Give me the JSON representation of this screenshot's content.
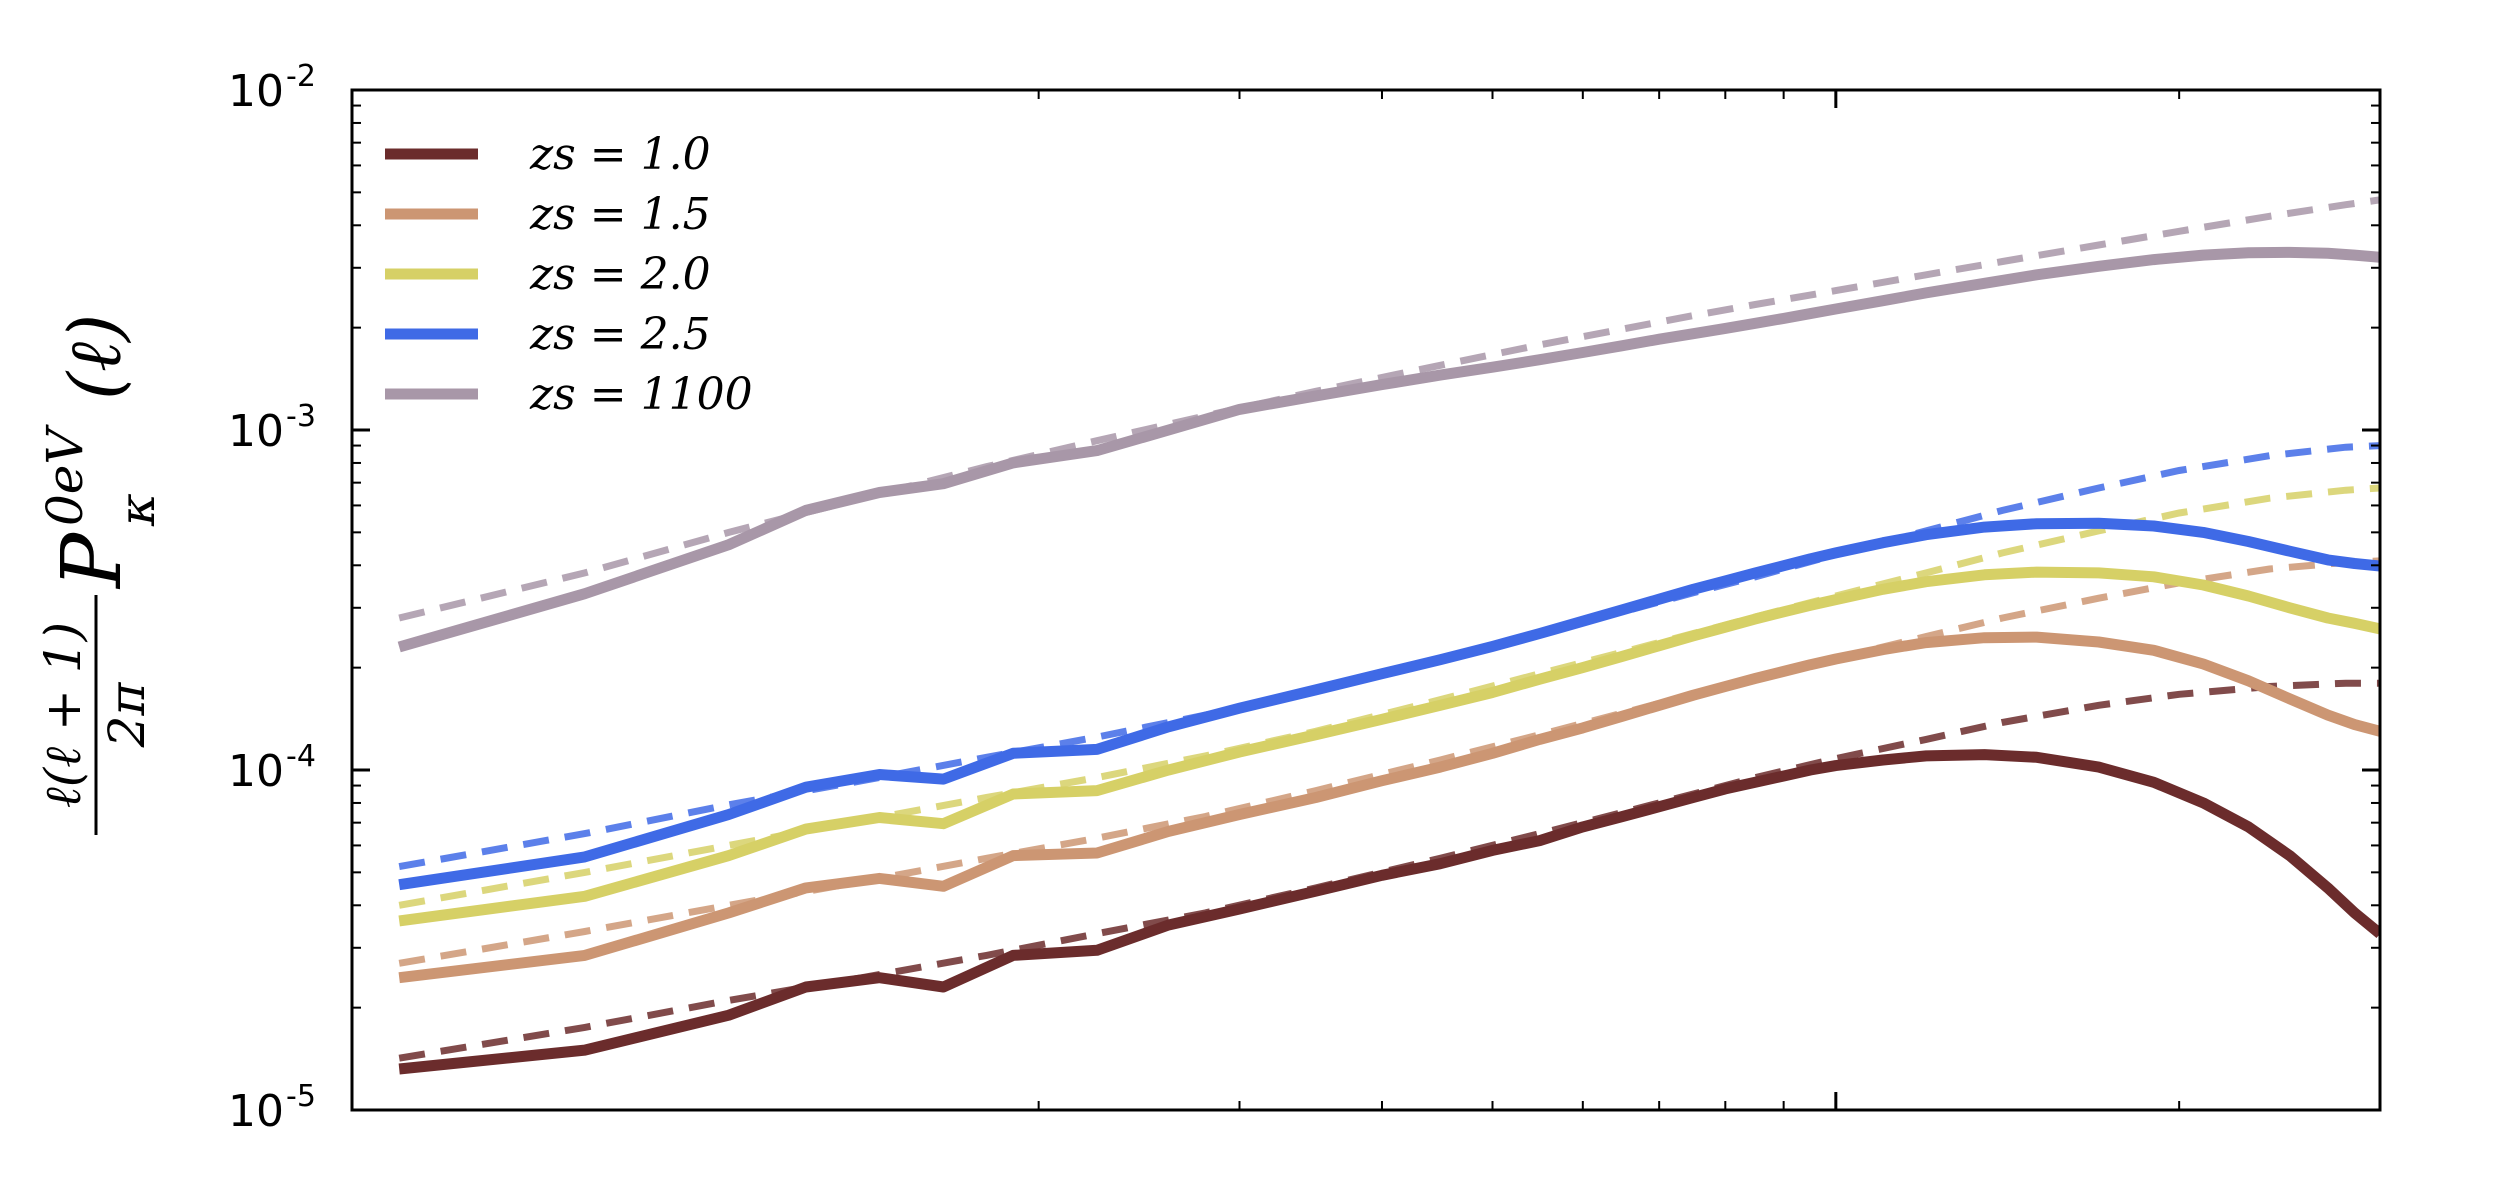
{
  "chart_data": {
    "type": "line",
    "xscale": "log",
    "yscale": "log",
    "xlim": [
      50,
      3000
    ],
    "ylim": [
      1e-05,
      0.01
    ],
    "grid": false,
    "legend_placement": "top-left",
    "ylabel": {
      "left_prefix": "ℓ(ℓ + 1)",
      "left_denominator": "2π",
      "main": "P",
      "superscript": "0eV",
      "subscript": "κ",
      "argument": "(ℓ)"
    },
    "y_ticks": [
      {
        "value": 1e-05,
        "base": "10",
        "exponent": "-5"
      },
      {
        "value": 0.0001,
        "base": "10",
        "exponent": "-4"
      },
      {
        "value": 0.001,
        "base": "10",
        "exponent": "-3"
      },
      {
        "value": 0.01,
        "base": "10",
        "exponent": "-2"
      }
    ],
    "x_major_ticks": [
      1000
    ],
    "x_minor_ticks": [
      200,
      300,
      400,
      500,
      600,
      700,
      800,
      900,
      2000,
      3000
    ],
    "series": [
      {
        "name": "z_s = 1.0",
        "legend_label": "zs = 1.0",
        "color": "#6b2c2c",
        "x": [
          55,
          80,
          107,
          125,
          145,
          165,
          190,
          225,
          260,
          300,
          350,
          400,
          450,
          500,
          550,
          600,
          650,
          700,
          750,
          800,
          850,
          900,
          950,
          1000,
          1100,
          1200,
          1350,
          1500,
          1700,
          1900,
          2100,
          2300,
          2500,
          2700,
          2850,
          3000
        ],
        "values": [
          1.32e-05,
          1.5e-05,
          1.9e-05,
          2.3e-05,
          2.45e-05,
          2.3e-05,
          2.85e-05,
          2.95e-05,
          3.5e-05,
          3.9e-05,
          4.4e-05,
          4.9e-05,
          5.3e-05,
          5.8e-05,
          6.2e-05,
          6.8e-05,
          7.3e-05,
          7.8e-05,
          8.3e-05,
          8.8e-05,
          9.2e-05,
          9.6e-05,
          0.0001,
          0.000103,
          0.000107,
          0.00011,
          0.000111,
          0.000109,
          0.000102,
          9.2e-05,
          8e-05,
          6.8e-05,
          5.6e-05,
          4.5e-05,
          3.8e-05,
          3.3e-05
        ],
        "dashed": {
          "x": [
            55,
            80,
            107,
            140,
            180,
            225,
            280,
            350,
            450,
            550,
            650,
            750,
            850,
            1000,
            1200,
            1400,
            1700,
            2000,
            2400,
            2800,
            3000
          ],
          "values": [
            1.42e-05,
            1.75e-05,
            2.1e-05,
            2.45e-05,
            2.85e-05,
            3.3e-05,
            3.8e-05,
            4.5e-05,
            5.5e-05,
            6.5e-05,
            7.5e-05,
            8.5e-05,
            9.5e-05,
            0.000108,
            0.000123,
            0.000138,
            0.000155,
            0.000167,
            0.000176,
            0.00018,
            0.00018
          ]
        }
      },
      {
        "name": "z_s = 1.5",
        "legend_label": "zs = 1.5",
        "color": "#cc9673",
        "x": [
          55,
          80,
          107,
          125,
          145,
          165,
          190,
          225,
          260,
          300,
          350,
          400,
          450,
          500,
          550,
          600,
          650,
          700,
          750,
          800,
          850,
          900,
          950,
          1000,
          1100,
          1200,
          1350,
          1500,
          1700,
          1900,
          2100,
          2300,
          2500,
          2700,
          2850,
          3000
        ],
        "values": [
          2.45e-05,
          2.85e-05,
          3.8e-05,
          4.5e-05,
          4.8e-05,
          4.55e-05,
          5.6e-05,
          5.7e-05,
          6.6e-05,
          7.4e-05,
          8.3e-05,
          9.3e-05,
          0.000102,
          0.000112,
          0.000123,
          0.000133,
          0.000144,
          0.000155,
          0.000166,
          0.000176,
          0.000186,
          0.000195,
          0.000204,
          0.000212,
          0.000226,
          0.000237,
          0.000245,
          0.000246,
          0.000238,
          0.000225,
          0.000205,
          0.000183,
          0.000162,
          0.000145,
          0.000136,
          0.00013
        ],
        "dashed": {
          "x": [
            55,
            80,
            107,
            140,
            180,
            225,
            280,
            350,
            450,
            550,
            650,
            750,
            850,
            1000,
            1200,
            1400,
            1700,
            2000,
            2400,
            2800,
            3000
          ],
          "values": [
            2.7e-05,
            3.35e-05,
            4e-05,
            4.7e-05,
            5.5e-05,
            6.3e-05,
            7.3e-05,
            8.7e-05,
            0.000107,
            0.000127,
            0.000147,
            0.000167,
            0.000187,
            0.000213,
            0.000247,
            0.00028,
            0.00032,
            0.000355,
            0.00039,
            0.000408,
            0.000412
          ]
        }
      },
      {
        "name": "z_s = 2.0",
        "legend_label": "zs = 2.0",
        "color": "#d6d066",
        "x": [
          55,
          80,
          107,
          125,
          145,
          165,
          190,
          225,
          260,
          300,
          350,
          400,
          450,
          500,
          550,
          600,
          650,
          700,
          750,
          800,
          850,
          900,
          950,
          1000,
          1100,
          1200,
          1350,
          1500,
          1700,
          1900,
          2100,
          2300,
          2500,
          2700,
          2850,
          3000
        ],
        "values": [
          3.6e-05,
          4.25e-05,
          5.6e-05,
          6.7e-05,
          7.25e-05,
          6.95e-05,
          8.5e-05,
          8.7e-05,
          0.0001,
          0.000113,
          0.000127,
          0.000141,
          0.000155,
          0.000169,
          0.000185,
          0.0002,
          0.000216,
          0.000232,
          0.000248,
          0.000263,
          0.000278,
          0.000292,
          0.000305,
          0.000317,
          0.00034,
          0.000358,
          0.000375,
          0.000382,
          0.00038,
          0.00037,
          0.00035,
          0.000325,
          0.0003,
          0.00028,
          0.00027,
          0.00026
        ],
        "dashed": {
          "x": [
            55,
            80,
            107,
            140,
            180,
            225,
            280,
            350,
            450,
            550,
            650,
            750,
            850,
            1000,
            1200,
            1400,
            1700,
            2000,
            2400,
            2800,
            3000
          ],
          "values": [
            4e-05,
            5e-05,
            6e-05,
            7.1e-05,
            8.3e-05,
            9.5e-05,
            0.00011,
            0.00013,
            0.000161,
            0.000192,
            0.000222,
            0.000252,
            0.000282,
            0.000325,
            0.00038,
            0.000435,
            0.000505,
            0.00057,
            0.00063,
            0.000665,
            0.000675
          ]
        }
      },
      {
        "name": "z_s = 2.5",
        "legend_label": "zs = 2.5",
        "color": "#3f6ae6",
        "x": [
          55,
          80,
          107,
          125,
          145,
          165,
          190,
          225,
          260,
          300,
          350,
          400,
          450,
          500,
          550,
          600,
          650,
          700,
          750,
          800,
          850,
          900,
          950,
          1000,
          1100,
          1200,
          1350,
          1500,
          1700,
          1900,
          2100,
          2300,
          2500,
          2700,
          2850,
          3000
        ],
        "values": [
          4.6e-05,
          5.55e-05,
          7.4e-05,
          8.9e-05,
          9.7e-05,
          9.4e-05,
          0.000112,
          0.000115,
          0.000134,
          0.000152,
          0.000172,
          0.000192,
          0.000211,
          0.000231,
          0.000252,
          0.000274,
          0.000296,
          0.000318,
          0.00034,
          0.00036,
          0.00038,
          0.000399,
          0.000418,
          0.000435,
          0.000466,
          0.000492,
          0.000518,
          0.00053,
          0.000532,
          0.000522,
          0.0005,
          0.00047,
          0.00044,
          0.000415,
          0.000405,
          0.000398
        ],
        "dashed": {
          "x": [
            55,
            80,
            107,
            140,
            180,
            225,
            280,
            350,
            450,
            550,
            650,
            750,
            850,
            1000,
            1200,
            1400,
            1700,
            2000,
            2400,
            2800,
            3000
          ],
          "values": [
            5.2e-05,
            6.5e-05,
            7.9e-05,
            9.3e-05,
            0.000109,
            0.000125,
            0.000145,
            0.000171,
            0.000212,
            0.000252,
            0.000292,
            0.000332,
            0.00037,
            0.00043,
            0.000505,
            0.00058,
            0.000675,
            0.00076,
            0.00084,
            0.00089,
            0.0009
          ]
        }
      },
      {
        "name": "z_s = 1100",
        "legend_label": "zs = 1100",
        "color": "#a897a8",
        "x": [
          55,
          80,
          107,
          125,
          145,
          165,
          190,
          225,
          260,
          300,
          350,
          400,
          450,
          500,
          550,
          600,
          650,
          700,
          750,
          800,
          850,
          900,
          950,
          1000,
          1100,
          1200,
          1350,
          1500,
          1700,
          1900,
          2100,
          2300,
          2500,
          2700,
          2850,
          3000
        ],
        "values": [
          0.00023,
          0.00033,
          0.00046,
          0.00058,
          0.000655,
          0.000695,
          0.0008,
          0.00087,
          0.001,
          0.00115,
          0.00126,
          0.00136,
          0.00145,
          0.00153,
          0.00161,
          0.00169,
          0.00177,
          0.00185,
          0.00192,
          0.00199,
          0.00206,
          0.00213,
          0.0022,
          0.00227,
          0.0024,
          0.00253,
          0.0027,
          0.00286,
          0.00303,
          0.00317,
          0.00327,
          0.00332,
          0.00333,
          0.00331,
          0.00327,
          0.00322
        ],
        "dashed": {
          "x": [
            55,
            80,
            107,
            140,
            180,
            225,
            280,
            350,
            450,
            550,
            650,
            750,
            850,
            1000,
            1200,
            1400,
            1700,
            2000,
            2400,
            2800,
            3000
          ],
          "values": [
            0.00028,
            0.00038,
            0.0005,
            0.00063,
            0.00078,
            0.00093,
            0.0011,
            0.0013,
            0.00155,
            0.00178,
            0.00198,
            0.00217,
            0.00234,
            0.00257,
            0.00286,
            0.00313,
            0.0035,
            0.00384,
            0.00425,
            0.0046,
            0.00475
          ]
        }
      }
    ]
  }
}
